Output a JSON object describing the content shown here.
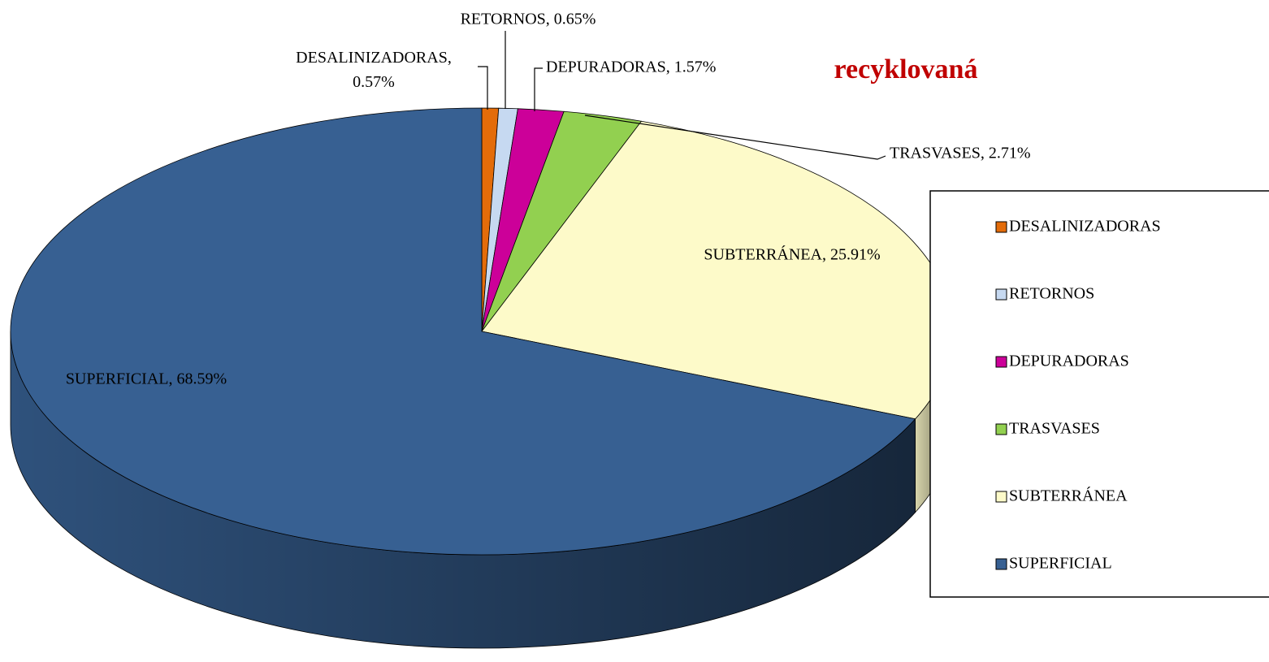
{
  "chart_data": {
    "type": "pie3d",
    "annotation": "recyklovaná",
    "categories": [
      "DESALINIZADORAS",
      "RETORNOS",
      "DEPURADORAS",
      "TRASVASES",
      "SUBTERRÁNEA",
      "SUPERFICIAL"
    ],
    "values": [
      0.57,
      0.65,
      1.57,
      2.71,
      25.91,
      68.59
    ],
    "value_labels": [
      "DESALINIZADORAS, 0.57%",
      "RETORNOS, 0.65%",
      "DEPURADORAS, 1.57%",
      "TRASVASES, 2.71%",
      "SUBTERRÁNEA, 25.91%",
      "SUPERFICIAL, 68.59%"
    ],
    "colors": [
      "#e36c0a",
      "#c6d9f1",
      "#cc0099",
      "#92d050",
      "#fdfac9",
      "#376092"
    ],
    "legend": "right"
  }
}
